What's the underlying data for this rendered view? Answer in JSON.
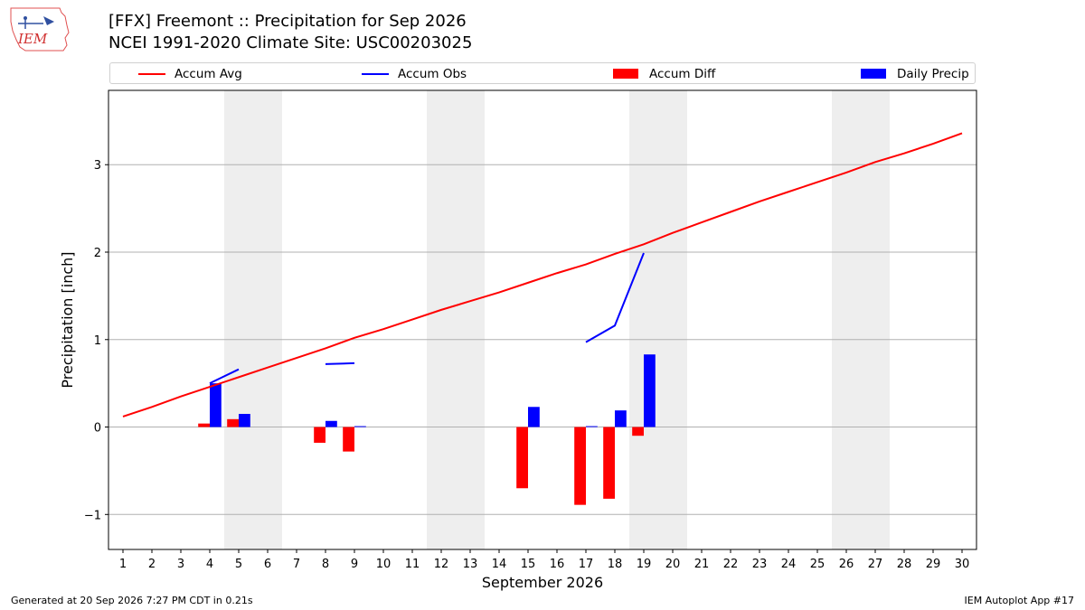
{
  "header": {
    "logo_text": "IEM",
    "title_line1": "[FFX] Freemont :: Precipitation for Sep 2026",
    "title_line2": "NCEI 1991-2020 Climate Site: USC00203025"
  },
  "legend": {
    "items": [
      {
        "label": "Accum Avg",
        "kind": "line",
        "color": "#ff0000"
      },
      {
        "label": "Accum Obs",
        "kind": "line",
        "color": "#0000ff"
      },
      {
        "label": "Accum Diff",
        "kind": "bar",
        "color": "#ff0000"
      },
      {
        "label": "Daily Precip",
        "kind": "bar",
        "color": "#0000ff"
      }
    ]
  },
  "chart_data": {
    "type": "bar",
    "xlabel": "September 2026",
    "ylabel": "Precipitation [inch]",
    "xlim": [
      0.5,
      30.5
    ],
    "ylim": [
      -1.4,
      3.85
    ],
    "x_ticks": [
      1,
      2,
      3,
      4,
      5,
      6,
      7,
      8,
      9,
      10,
      11,
      12,
      13,
      14,
      15,
      16,
      17,
      18,
      19,
      20,
      21,
      22,
      23,
      24,
      25,
      26,
      27,
      28,
      29,
      30
    ],
    "y_ticks": [
      -1,
      0,
      1,
      2,
      3
    ],
    "y_tick_labels": [
      "−1",
      "0",
      "1",
      "2",
      "3"
    ],
    "grid": "horizontal",
    "weekend_shading": [
      [
        4.5,
        6.5
      ],
      [
        11.5,
        13.5
      ],
      [
        18.5,
        20.5
      ],
      [
        25.5,
        27.5
      ]
    ],
    "accum_avg": {
      "name": "Accum Avg",
      "color": "#ff0000",
      "x": [
        1,
        2,
        3,
        4,
        5,
        6,
        7,
        8,
        9,
        10,
        11,
        12,
        13,
        14,
        15,
        16,
        17,
        18,
        19,
        20,
        21,
        22,
        23,
        24,
        25,
        26,
        27,
        28,
        29,
        30
      ],
      "y": [
        0.12,
        0.23,
        0.35,
        0.46,
        0.57,
        0.68,
        0.79,
        0.9,
        1.02,
        1.12,
        1.23,
        1.34,
        1.44,
        1.54,
        1.65,
        1.76,
        1.86,
        1.98,
        2.09,
        2.22,
        2.34,
        2.46,
        2.58,
        2.69,
        2.8,
        2.91,
        3.03,
        3.13,
        3.24,
        3.36
      ]
    },
    "accum_obs_segments": [
      {
        "x": [
          4,
          5
        ],
        "y": [
          0.5,
          0.66
        ]
      },
      {
        "x": [
          8,
          9
        ],
        "y": [
          0.72,
          0.73
        ]
      },
      {
        "x": [
          17,
          18,
          19
        ],
        "y": [
          0.97,
          1.16,
          1.99
        ]
      }
    ],
    "accum_obs_color": "#0000ff",
    "accum_diff": {
      "name": "Accum Diff",
      "color": "#ff0000",
      "x": [
        4,
        5,
        8,
        9,
        15,
        17,
        18,
        19
      ],
      "values": [
        0.04,
        0.09,
        -0.18,
        -0.28,
        -0.7,
        -0.89,
        -0.82,
        -0.1
      ]
    },
    "daily_precip": {
      "name": "Daily Precip",
      "color": "#0000ff",
      "x": [
        4,
        5,
        8,
        9,
        15,
        17,
        18,
        19
      ],
      "values": [
        0.5,
        0.15,
        0.07,
        0.01,
        0.23,
        0.01,
        0.19,
        0.83
      ]
    }
  },
  "footer": {
    "generated": "Generated at 20 Sep 2026 7:27 PM CDT in 0.21s",
    "app": "IEM Autoplot App #17"
  }
}
